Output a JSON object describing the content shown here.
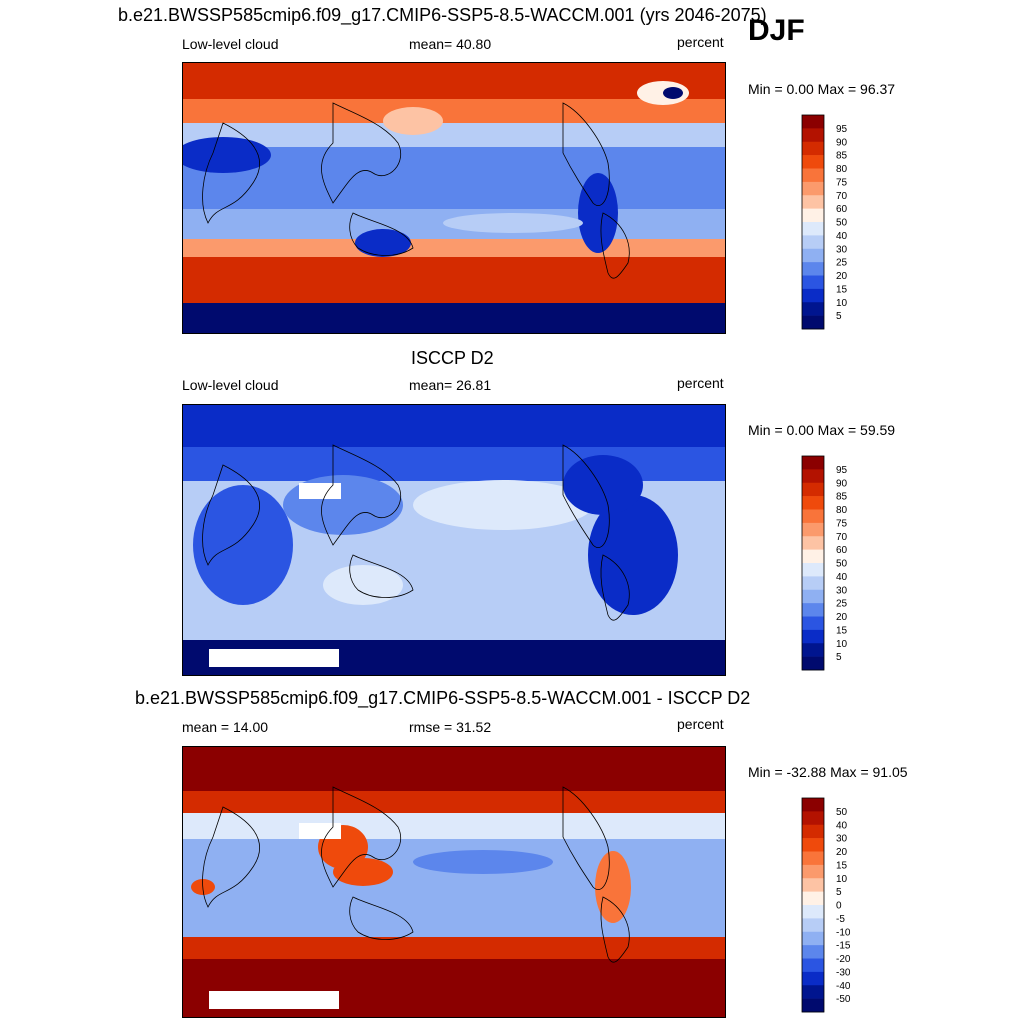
{
  "header": {
    "season": "DJF"
  },
  "panels": [
    {
      "title": "b.e21.BWSSP585cmip6.f09_g17.CMIP6-SSP5-8.5-WACCM.001 (yrs 2046-2075)",
      "left_label": "Low-level cloud",
      "stat_label": "mean=  40.80",
      "units": "percent",
      "minmax": "Min =   0.00 Max =  96.37",
      "colorbar_levels": [
        "95",
        "90",
        "85",
        "80",
        "75",
        "70",
        "60",
        "50",
        "40",
        "30",
        "25",
        "20",
        "15",
        "10",
        "5"
      ],
      "fill": "model"
    },
    {
      "title": "ISCCP D2",
      "left_label": "Low-level cloud",
      "stat_label": "mean=  26.81",
      "units": "percent",
      "minmax": "Min =   0.00 Max =  59.59",
      "colorbar_levels": [
        "95",
        "90",
        "85",
        "80",
        "75",
        "70",
        "60",
        "50",
        "40",
        "30",
        "25",
        "20",
        "15",
        "10",
        "5"
      ],
      "fill": "obs"
    },
    {
      "title": "b.e21.BWSSP585cmip6.f09_g17.CMIP6-SSP5-8.5-WACCM.001 - ISCCP D2",
      "left_label": "mean =  14.00",
      "stat_label": "rmse =  31.52",
      "units": "percent",
      "minmax": "Min = -32.88 Max =  91.05",
      "colorbar_levels": [
        "50",
        "40",
        "30",
        "20",
        "15",
        "10",
        "5",
        "0",
        "-5",
        "-10",
        "-15",
        "-20",
        "-30",
        "-40",
        "-50"
      ],
      "fill": "diff"
    }
  ],
  "colorbar_colors": [
    "#8b0000",
    "#b31200",
    "#d42b00",
    "#ef4a0c",
    "#f9743a",
    "#fb9a6c",
    "#fdc3a4",
    "#fff1e6",
    "#dde9fb",
    "#b7cdf6",
    "#8fb0f2",
    "#5c86ec",
    "#2b55e2",
    "#0a2cc7",
    "#00158f",
    "#000a6e"
  ]
}
